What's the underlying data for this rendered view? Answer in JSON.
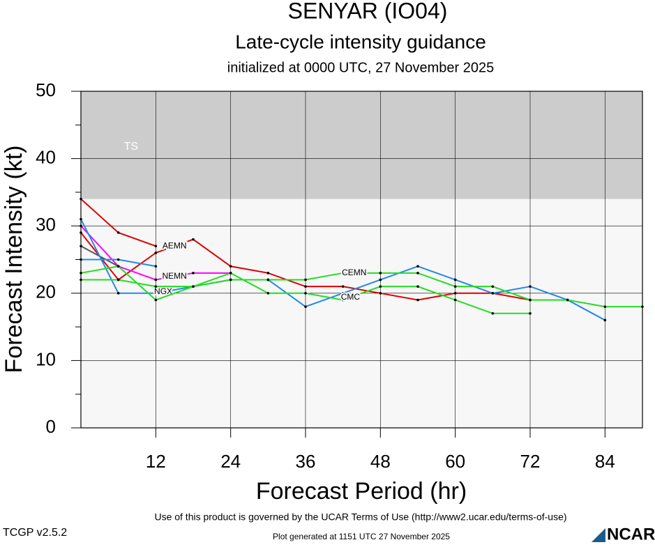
{
  "chart_data": {
    "type": "line",
    "title": "SENYAR (IO04)",
    "subtitle": "Late-cycle intensity guidance",
    "subtitle2": "initialized at 0000 UTC, 27 November 2025",
    "xlabel": "Forecast Period (hr)",
    "ylabel": "Forecast Intensity (kt)",
    "xlim": [
      0,
      90
    ],
    "ylim": [
      0,
      50
    ],
    "xticks": [
      12,
      24,
      36,
      48,
      60,
      72,
      84
    ],
    "yticks": [
      0,
      10,
      20,
      30,
      40,
      50
    ],
    "bands": [
      {
        "label": "TS",
        "from": 34,
        "to": 50,
        "color": "#cccccc"
      }
    ],
    "series": [
      {
        "color": "#e00000",
        "x": [
          0,
          6,
          12
        ],
        "values": [
          34,
          29,
          27
        ]
      },
      {
        "name": "AEMN",
        "color": "#e00000",
        "x": [
          0,
          6,
          12,
          18,
          24,
          30,
          36,
          42,
          48,
          54,
          60,
          66,
          72
        ],
        "values": [
          29,
          22,
          26,
          28,
          24,
          23,
          21,
          21,
          20,
          19,
          20,
          20,
          19
        ]
      },
      {
        "name": "NEMN",
        "color": "#ff00ff",
        "x": [
          0,
          6,
          12,
          18,
          24
        ],
        "values": [
          30,
          24,
          22,
          23,
          23
        ]
      },
      {
        "color": "#555555",
        "x": [
          0,
          6
        ],
        "values": [
          27,
          24
        ]
      },
      {
        "color": "#2288ee",
        "x": [
          0,
          6,
          12
        ],
        "values": [
          25,
          25,
          24
        ]
      },
      {
        "name": "NGX",
        "color": "#2288ee",
        "x": [
          0,
          6,
          12,
          18,
          24,
          30,
          36,
          42,
          48,
          54,
          60,
          66,
          72,
          78,
          84
        ],
        "values": [
          31,
          20,
          20,
          21,
          22,
          22,
          18,
          20,
          22,
          24,
          22,
          20,
          21,
          19,
          16
        ]
      },
      {
        "name": "CMC",
        "color": "#22dd22",
        "x": [
          0,
          6,
          12,
          18,
          24,
          30,
          36,
          42,
          48,
          54,
          60,
          66,
          72
        ],
        "values": [
          23,
          24,
          19,
          21,
          23,
          20,
          20,
          19,
          21,
          21,
          19,
          17,
          17
        ]
      },
      {
        "name": "CEMN",
        "color": "#22dd22",
        "x": [
          0,
          6,
          12,
          18,
          24,
          30,
          36,
          42,
          48,
          54,
          60,
          66,
          72,
          78,
          84,
          90
        ],
        "values": [
          22,
          22,
          21,
          21,
          22,
          22,
          22,
          23,
          23,
          23,
          21,
          21,
          19,
          19,
          18,
          18
        ]
      }
    ]
  },
  "footer": {
    "terms": "Use of this product is governed by the UCAR Terms of Use (http://www2.ucar.edu/terms-of-use)",
    "version": "TCGP v2.5.2",
    "generated": "Plot generated at 1151 UTC   27 November 2025",
    "logo": "NCAR"
  }
}
